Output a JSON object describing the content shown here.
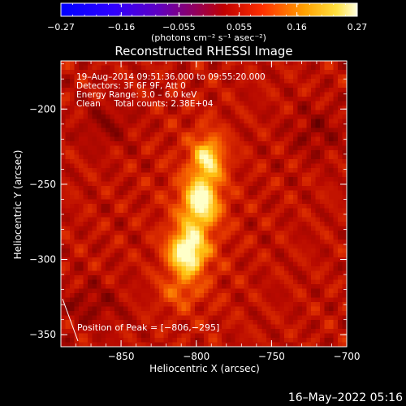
{
  "chart_data": {
    "type": "heatmap",
    "title": "Reconstructed RHESSI Image",
    "xlabel": "Heliocentric X (arcsec)",
    "ylabel": "Heliocentric Y (arcsec)",
    "xlim": [
      -890,
      -700
    ],
    "ylim": [
      -358,
      -168
    ],
    "x_ticks": [
      -850,
      -800,
      -750,
      -700
    ],
    "x_tick_labels": [
      "−850",
      "−800",
      "−750",
      "−700"
    ],
    "y_ticks": [
      -350,
      -300,
      -250,
      -200
    ],
    "y_tick_labels": [
      "−350",
      "−300",
      "−250",
      "−200"
    ],
    "colorbar": {
      "min": -0.27,
      "max": 0.27,
      "ticks": [
        -0.27,
        -0.16,
        -0.055,
        0.055,
        0.16,
        0.27
      ],
      "tick_labels": [
        "−0.27",
        "−0.16",
        "−0.055",
        "0.055",
        "0.16",
        "0.27"
      ],
      "units": "(photons cm⁻² s⁻¹ asec⁻²)",
      "colormap": "blue-purple-red-yellow-white"
    },
    "annotations": [
      "19–Aug–2014 09:51:36.000 to 09:55:20.000",
      "Detectors: 3F 6F 9F, Att 0",
      "Energy Range: 3.0 – 6.0 keV",
      "Clean     Total counts: 2.38E+04"
    ],
    "peak_label": "Position of Peak = [−806,−295]",
    "peak": [
      -806,
      -295
    ],
    "grid": false
  },
  "footer_timestamp": "16–May–2022 05:16",
  "colors": {
    "background": "#000000",
    "foreground": "#ffffff"
  }
}
